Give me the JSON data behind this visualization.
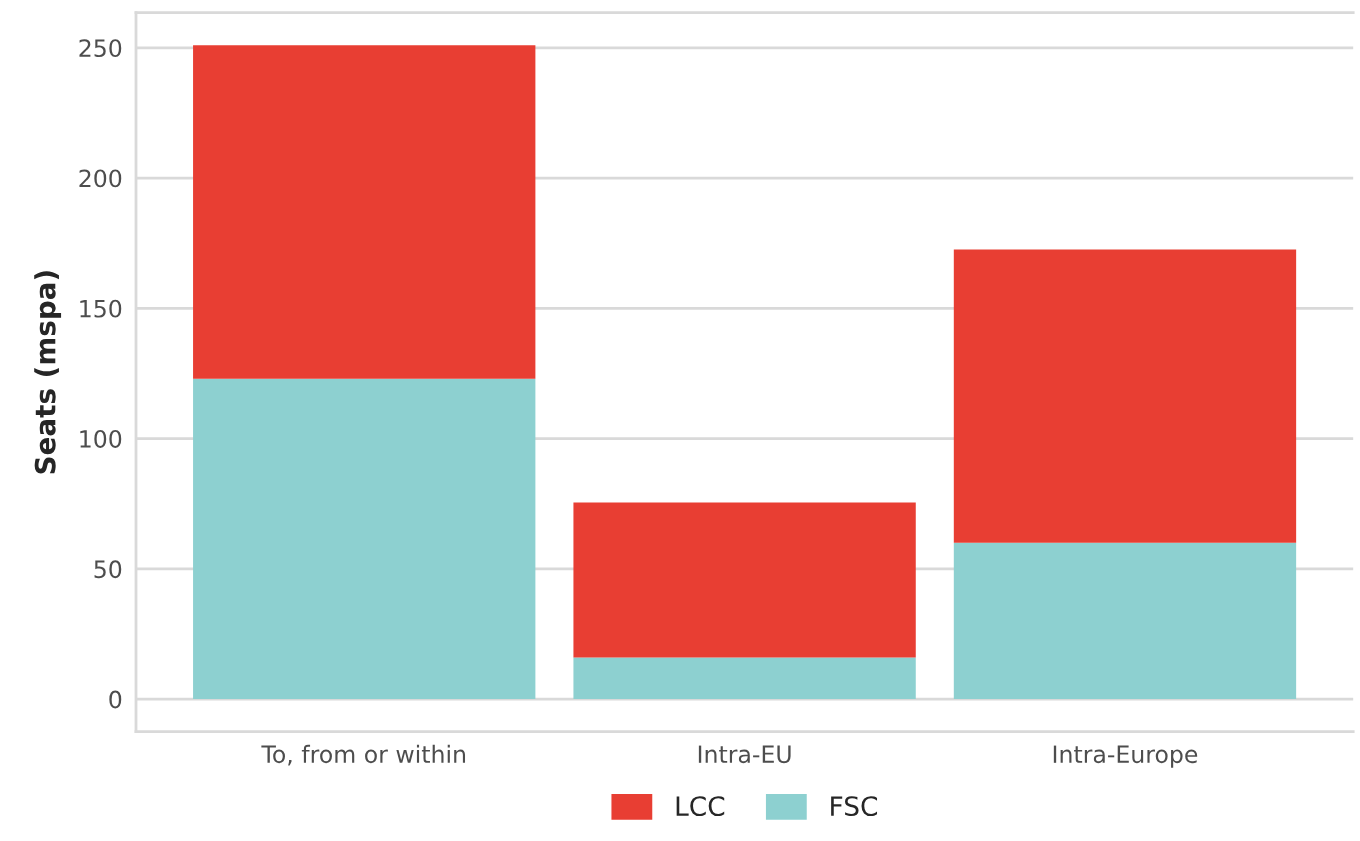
{
  "chart_data": {
    "type": "bar",
    "ylabel": "Seats (mspa)",
    "categories": [
      "To, from or within",
      "Intra-EU",
      "Intra-Europe"
    ],
    "series": [
      {
        "name": "FSC",
        "color": "#8dd0d0",
        "values": [
          123,
          16,
          60
        ]
      },
      {
        "name": "LCC",
        "color": "#e83e33",
        "values": [
          128,
          59.5,
          112.6
        ]
      }
    ],
    "stacked": true,
    "ylim": [
      -12.5,
      263.5
    ],
    "yticks": [
      0,
      50,
      100,
      150,
      200,
      250
    ],
    "grid": "y",
    "legend": "bottom"
  }
}
